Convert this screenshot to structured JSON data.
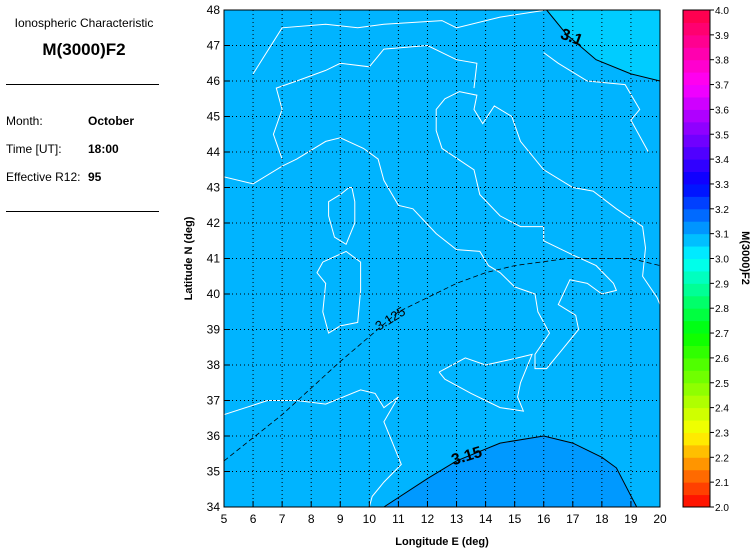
{
  "panel": {
    "subtitle": "Ionospheric Characteristic",
    "title": "M(3000)F2",
    "month_label": "Month:",
    "month": "October",
    "time_label": "Time [UT]:",
    "time": "18:00",
    "r12_label": "Effective R12:",
    "r12": "95"
  },
  "map": {
    "xlabel": "Longitude E (deg)",
    "ylabel": "Latitude N (deg)",
    "xlim": [
      5,
      20
    ],
    "ylim": [
      34,
      48
    ],
    "xticks": [
      "5",
      "6",
      "7",
      "8",
      "9",
      "10",
      "11",
      "12",
      "13",
      "14",
      "15",
      "16",
      "17",
      "18",
      "19",
      "20"
    ],
    "yticks": [
      "34",
      "35",
      "36",
      "37",
      "38",
      "39",
      "40",
      "41",
      "42",
      "43",
      "44",
      "45",
      "46",
      "47",
      "48"
    ],
    "grid": true,
    "contours": [
      {
        "level": "3.1",
        "label": "3.1"
      },
      {
        "level": "3.125",
        "label": "3.125"
      },
      {
        "level": "3.15",
        "label": "3.15"
      }
    ],
    "colors": {
      "base": "#00b4ff",
      "below_3_15": "#0099ff",
      "above_3_1": "#00ccff",
      "coastline": "#ffffff"
    }
  },
  "colorbar": {
    "label": "M(3000)F2",
    "range": [
      2.0,
      4.0
    ],
    "ticks": [
      "2.0",
      "2.1",
      "2.2",
      "2.3",
      "2.4",
      "2.5",
      "2.6",
      "2.7",
      "2.8",
      "2.9",
      "3.0",
      "3.1",
      "3.2",
      "3.3",
      "3.4",
      "3.5",
      "3.6",
      "3.7",
      "3.8",
      "3.9",
      "4.0"
    ]
  }
}
